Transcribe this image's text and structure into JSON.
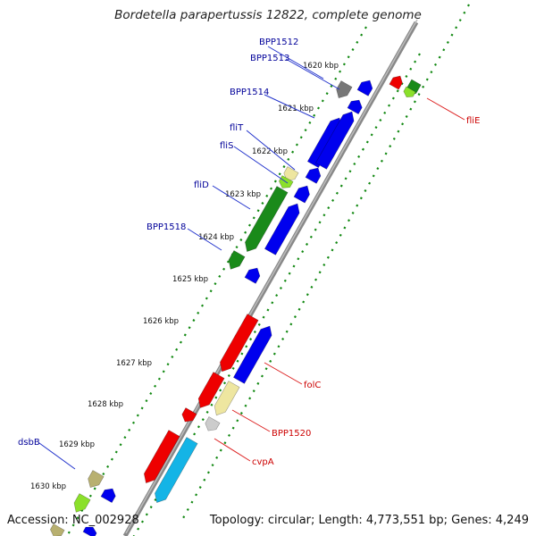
{
  "title": "Bordetella parapertussis 12822, complete genome",
  "footer": {
    "accession": "Accession: NC_002928",
    "topology": "Topology: circular; Length: 4,773,551 bp; Genes: 4,249"
  },
  "colors": {
    "blue": "#0000ee",
    "red": "#ee0000",
    "green": "#1a8a1a",
    "lime": "#8be02a",
    "cyan": "#14b4e6",
    "khaki": "#eee6a0",
    "olive": "#b8b070",
    "gray": "#777777",
    "silver": "#cccccc",
    "label_blue": "#000099",
    "label_red": "#cc0000",
    "tick_green": "#118811"
  },
  "kbp_labels": [
    "1620 kbp",
    "1621 kbp",
    "1622 kbp",
    "1623 kbp",
    "1624 kbp",
    "1625 kbp",
    "1626 kbp",
    "1627 kbp",
    "1628 kbp",
    "1629 kbp",
    "1630 kbp"
  ],
  "gene_labels_left": [
    "BPP1512",
    "BPP1513",
    "BPP1514",
    "fliT",
    "fliS",
    "fliD",
    "BPP1518",
    "dsbB"
  ],
  "gene_labels_right": [
    "fliE",
    "folC",
    "BPP1520",
    "cvpA"
  ]
}
